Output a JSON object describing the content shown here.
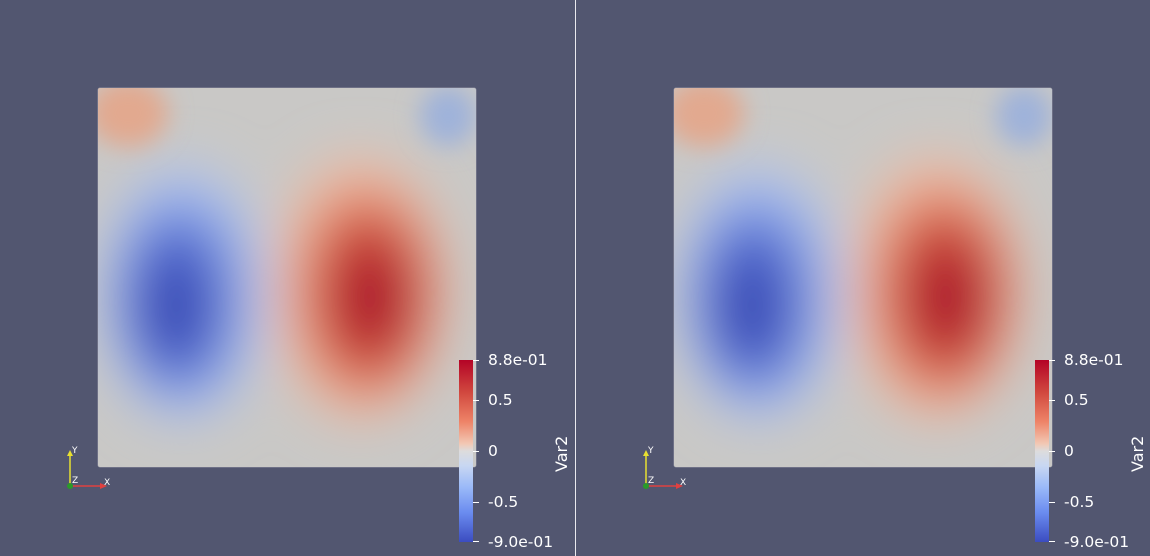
{
  "views": [
    {
      "name": "left",
      "scalar_bar": {
        "title": "Var2",
        "labels": [
          "8.8e-01",
          "0.5",
          "0",
          "-0.5",
          "-9.0e-01"
        ],
        "range": [
          -0.9,
          0.88
        ]
      },
      "axes": {
        "x": "X",
        "y": "Y",
        "z": "Z"
      }
    },
    {
      "name": "right",
      "scalar_bar": {
        "title": "Var2",
        "labels": [
          "8.8e-01",
          "0.5",
          "0",
          "-0.5",
          "-9.0e-01"
        ],
        "range": [
          -0.9,
          0.88
        ]
      },
      "axes": {
        "x": "X",
        "y": "Y",
        "z": "Z"
      }
    }
  ],
  "colors": {
    "background": "#525670",
    "colormap_max": "#b40426",
    "colormap_mid": "#dddcdc",
    "colormap_min": "#3b4cc0",
    "axis_x": "#e04040",
    "axis_y": "#e8e030",
    "axis_z": "#2a9a2a"
  }
}
